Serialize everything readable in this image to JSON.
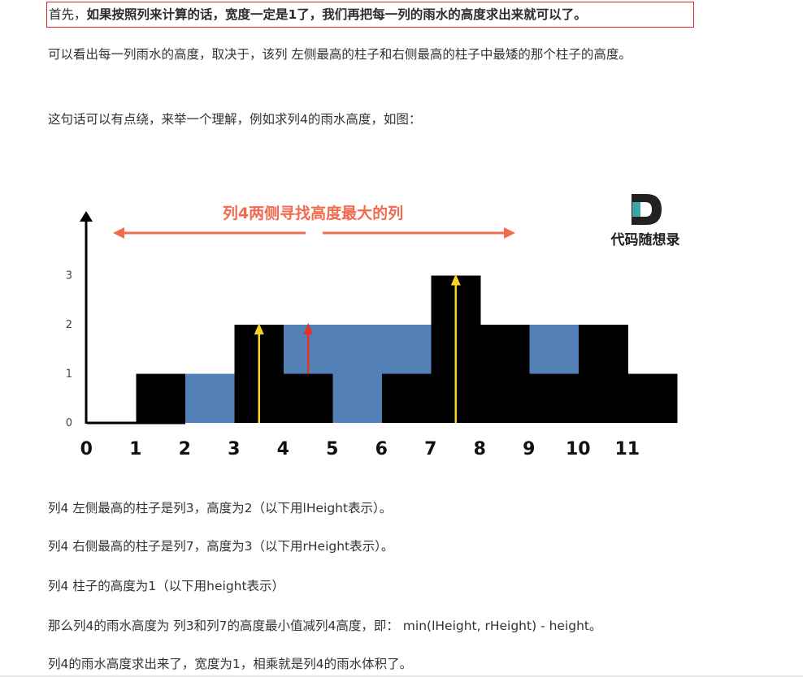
{
  "intro": {
    "prefix": "首先，",
    "bold": "如果按照列来计算的话，宽度一定是1了，我们再把每一列的雨水的高度求出来就可以了。"
  },
  "para1": "可以看出每一列雨水的高度，取决于，该列 左侧最高的柱子和右侧最高的柱子中最矮的那个柱子的高度。",
  "para2": "这句话可以有点绕，来举一个理解，例如求列4的雨水高度，如图：",
  "figure": {
    "banner": "列4两侧寻找高度最大的列",
    "logo_text": "代码随想录",
    "colors": {
      "bar": "#000000",
      "water": "#5480b8",
      "arrow_banner": "#f26b4e",
      "arrow_yellow": "#f6d22b",
      "arrow_red": "#e0312a",
      "logo_teal": "#3aa6a5"
    }
  },
  "chart_data": {
    "type": "bar",
    "categories": [
      "0",
      "1",
      "2",
      "3",
      "4",
      "5",
      "6",
      "7",
      "8",
      "9",
      "10",
      "11"
    ],
    "series": [
      {
        "values": [
          0,
          1,
          0,
          2,
          1,
          0,
          1,
          3,
          2,
          1,
          2,
          1
        ]
      },
      {
        "values": [
          0,
          0,
          1,
          0,
          1,
          2,
          1,
          0,
          0,
          1,
          0,
          0
        ]
      }
    ],
    "yticks": [
      "0",
      "1",
      "2",
      "3"
    ],
    "ylim": [
      0,
      3
    ],
    "grid": false
  },
  "lines": {
    "l1": "列4 左侧最高的柱子是列3，高度为2（以下用lHeight表示）。",
    "l2": "列4 右侧最高的柱子是列7，高度为3（以下用rHeight表示）。",
    "l3": "列4 柱子的高度为1（以下用height表示）",
    "l4": "那么列4的雨水高度为 列3和列7的高度最小值减列4高度，即： min(lHeight, rHeight) - height。",
    "l5": "列4的雨水高度求出来了，宽度为1，相乘就是列4的雨水体积了。"
  }
}
